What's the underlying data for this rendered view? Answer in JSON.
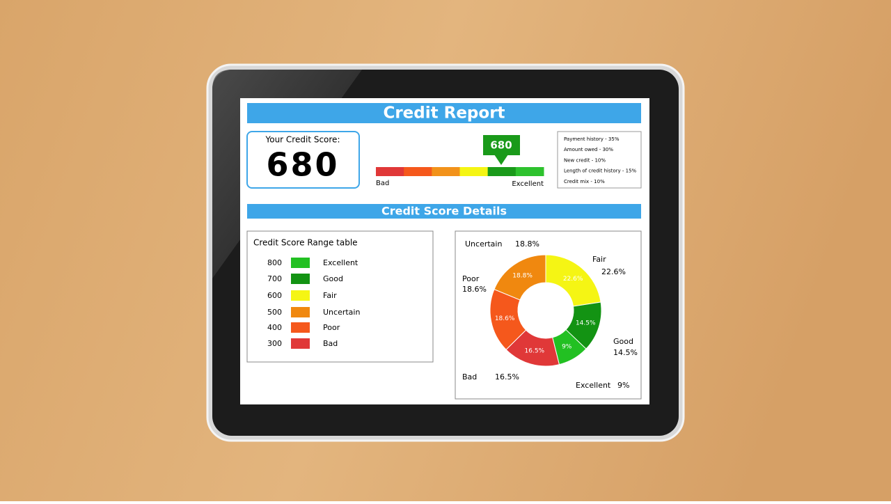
{
  "header": {
    "title": "Credit Report"
  },
  "score_box": {
    "label": "Your Credit Score:",
    "score": "680"
  },
  "gauge": {
    "low_label": "Bad",
    "high_label": "Excellent",
    "colors": [
      "#e03838",
      "#f5581c",
      "#f2921a",
      "#f5f514",
      "#1a9a1a",
      "#2ec22e"
    ]
  },
  "factors": [
    "Payment history - 35%",
    "Amount owed - 30%",
    "New credit - 10%",
    "Length of credit history - 15%",
    "Credit mix - 10%"
  ],
  "details_title": "Credit Score Details",
  "range_table": {
    "title": "Credit Score Range table",
    "rows": [
      [
        "800",
        "Excellent"
      ],
      [
        "700",
        "Good"
      ],
      [
        "600",
        "Fair"
      ],
      [
        "500",
        "Uncertain"
      ],
      [
        "400",
        "Poor"
      ],
      [
        "300",
        "Bad"
      ]
    ],
    "colors": [
      "#22c022",
      "#139313",
      "#f5f514",
      "#f0880f",
      "#f5581c",
      "#e03838"
    ]
  },
  "chart_data": {
    "type": "pie",
    "categories": [
      "Fair",
      "Good",
      "Excellent",
      "Bad",
      "Poor",
      "Uncertain"
    ],
    "values": [
      22.6,
      14.5,
      9,
      16.5,
      18.6,
      18.8
    ],
    "value_labels": [
      "22.6%",
      "14.5%",
      "9%",
      "16.5%",
      "18.6%",
      "18.8%"
    ],
    "colors": [
      "#f5f514",
      "#139313",
      "#22c022",
      "#e03838",
      "#f5581c",
      "#f0880f"
    ]
  }
}
